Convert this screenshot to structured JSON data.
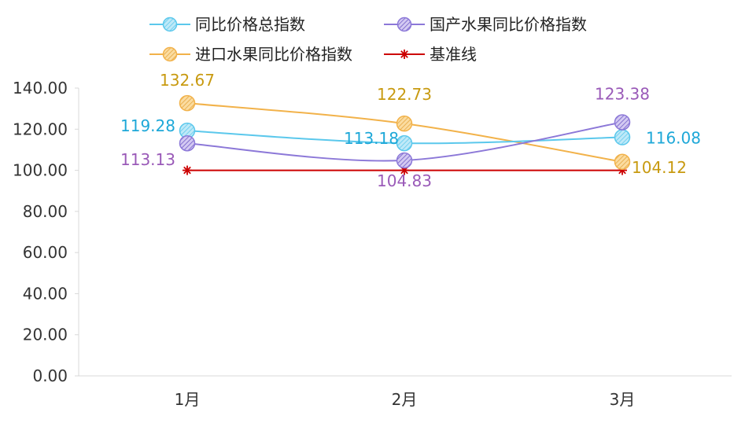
{
  "chart_data": {
    "type": "line",
    "title": "",
    "xlabel": "",
    "ylabel": "",
    "categories": [
      "1月",
      "2月",
      "3月"
    ],
    "ylim": [
      0,
      140
    ],
    "yticks": [
      "0.00",
      "20.00",
      "40.00",
      "60.00",
      "80.00",
      "100.00",
      "120.00",
      "140.00"
    ],
    "grid": false,
    "legend_position": "top",
    "series": [
      {
        "name": "同比价格总指数",
        "values": [
          119.28,
          113.18,
          116.08
        ],
        "labels": [
          "119.28",
          "113.18",
          "116.08"
        ],
        "color": "#5bc8ec",
        "label_color": "#1ea8d8",
        "marker": "circle"
      },
      {
        "name": "国产水果同比价格指数",
        "values": [
          113.13,
          104.83,
          123.38
        ],
        "labels": [
          "113.13",
          "104.83",
          "123.38"
        ],
        "color": "#8c78d8",
        "label_color": "#9a5ab8",
        "marker": "circle"
      },
      {
        "name": "进口水果同比价格指数",
        "values": [
          132.67,
          122.73,
          104.12
        ],
        "labels": [
          "132.67",
          "122.73",
          "104.12"
        ],
        "color": "#f2b24a",
        "label_color": "#c89a10",
        "marker": "circle"
      },
      {
        "name": "基准线",
        "values": [
          100,
          100,
          100
        ],
        "color": "#cc0000",
        "marker": "asterisk"
      }
    ]
  }
}
